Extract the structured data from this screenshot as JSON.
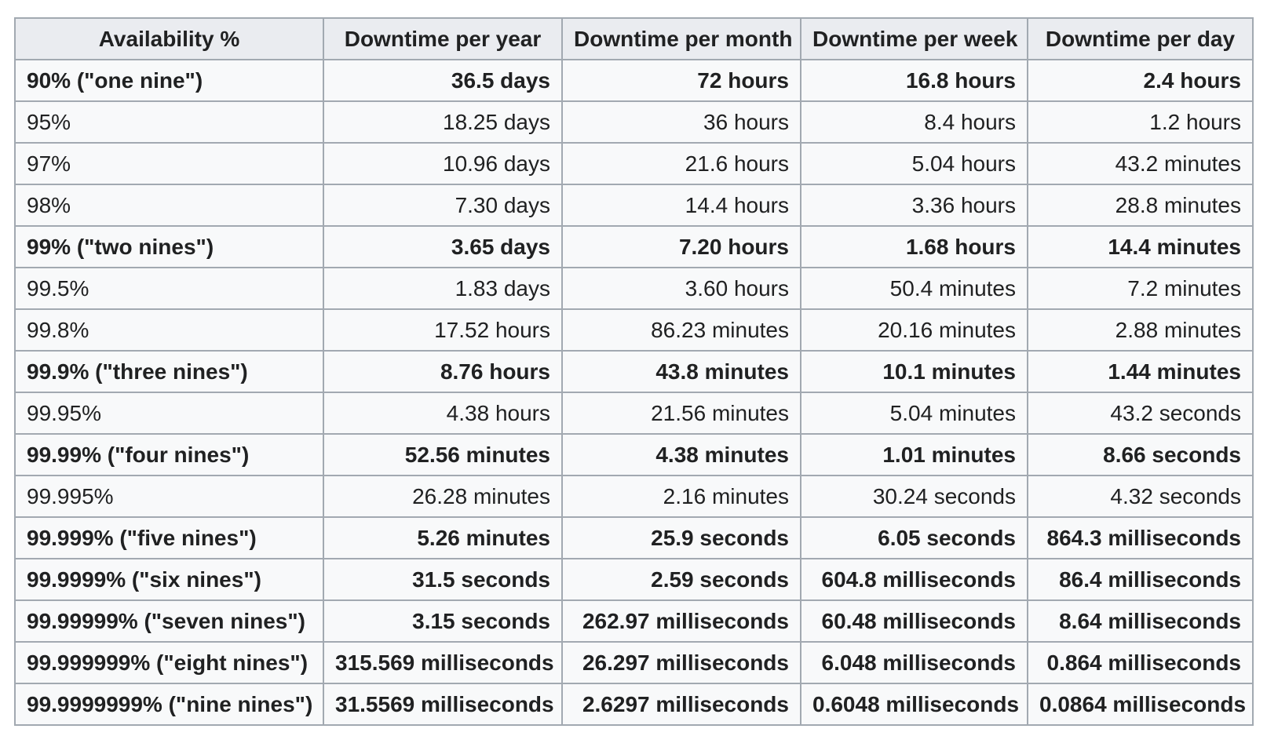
{
  "chart_data": {
    "type": "table",
    "columns": [
      "Availability %",
      "Downtime per year",
      "Downtime per month",
      "Downtime per week",
      "Downtime per day"
    ],
    "rows": [
      {
        "bold": true,
        "cells": [
          "90% (\"one nine\")",
          "36.5 days",
          "72 hours",
          "16.8 hours",
          "2.4 hours"
        ]
      },
      {
        "bold": false,
        "cells": [
          "95%",
          "18.25 days",
          "36 hours",
          "8.4 hours",
          "1.2 hours"
        ]
      },
      {
        "bold": false,
        "cells": [
          "97%",
          "10.96 days",
          "21.6 hours",
          "5.04 hours",
          "43.2 minutes"
        ]
      },
      {
        "bold": false,
        "cells": [
          "98%",
          "7.30 days",
          "14.4 hours",
          "3.36 hours",
          "28.8 minutes"
        ]
      },
      {
        "bold": true,
        "cells": [
          "99% (\"two nines\")",
          "3.65 days",
          "7.20 hours",
          "1.68 hours",
          "14.4 minutes"
        ]
      },
      {
        "bold": false,
        "cells": [
          "99.5%",
          "1.83 days",
          "3.60 hours",
          "50.4 minutes",
          "7.2 minutes"
        ]
      },
      {
        "bold": false,
        "cells": [
          "99.8%",
          "17.52 hours",
          "86.23 minutes",
          "20.16 minutes",
          "2.88 minutes"
        ]
      },
      {
        "bold": true,
        "cells": [
          "99.9% (\"three nines\")",
          "8.76 hours",
          "43.8 minutes",
          "10.1 minutes",
          "1.44 minutes"
        ]
      },
      {
        "bold": false,
        "cells": [
          "99.95%",
          "4.38 hours",
          "21.56 minutes",
          "5.04 minutes",
          "43.2 seconds"
        ]
      },
      {
        "bold": true,
        "cells": [
          "99.99% (\"four nines\")",
          "52.56 minutes",
          "4.38 minutes",
          "1.01 minutes",
          "8.66 seconds"
        ]
      },
      {
        "bold": false,
        "cells": [
          "99.995%",
          "26.28 minutes",
          "2.16 minutes",
          "30.24 seconds",
          "4.32 seconds"
        ]
      },
      {
        "bold": true,
        "cells": [
          "99.999% (\"five nines\")",
          "5.26 minutes",
          "25.9 seconds",
          "6.05 seconds",
          "864.3 milliseconds"
        ]
      },
      {
        "bold": true,
        "cells": [
          "99.9999% (\"six nines\")",
          "31.5 seconds",
          "2.59 seconds",
          "604.8 milliseconds",
          "86.4 milliseconds"
        ]
      },
      {
        "bold": true,
        "cells": [
          "99.99999% (\"seven nines\")",
          "3.15 seconds",
          "262.97 milliseconds",
          "60.48 milliseconds",
          "8.64 milliseconds"
        ]
      },
      {
        "bold": true,
        "cells": [
          "99.999999% (\"eight nines\")",
          "315.569 milliseconds",
          "26.297 milliseconds",
          "6.048 milliseconds",
          "0.864 milliseconds"
        ]
      },
      {
        "bold": true,
        "cells": [
          "99.9999999% (\"nine nines\")",
          "31.5569 milliseconds",
          "2.6297 milliseconds",
          "0.6048 milliseconds",
          "0.0864 milliseconds"
        ]
      }
    ],
    "layout": {
      "header_alignment": "center",
      "column_alignments": [
        "left",
        "right",
        "right",
        "right",
        "right"
      ],
      "grid": true,
      "legend": "none"
    }
  },
  "colors": {
    "header_bg": "#eaecf0",
    "row_bg": "#f8f9fa",
    "border": "#a2a9b1",
    "text": "#202122",
    "page_bg": "#ffffff"
  }
}
